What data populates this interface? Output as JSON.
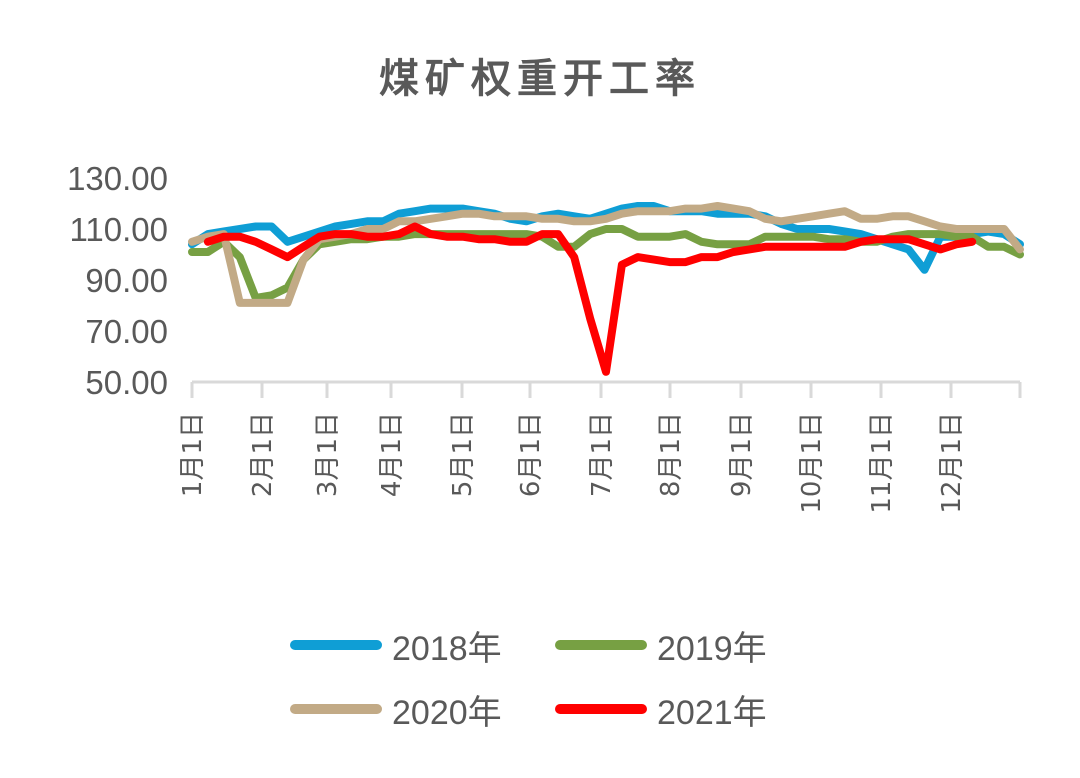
{
  "chart_data": {
    "type": "line",
    "title": "煤矿权重开工率",
    "xlabel": "",
    "ylabel": "",
    "ylim": [
      50,
      130
    ],
    "yticks": [
      "130.00",
      "110.00",
      "90.00",
      "70.00",
      "50.00"
    ],
    "xticks": [
      "1月1日",
      "2月1日",
      "3月1日",
      "4月1日",
      "5月1日",
      "6月1日",
      "7月1日",
      "8月1日",
      "9月1日",
      "10月1日",
      "11月1日",
      "12月1日"
    ],
    "grid": false,
    "legend_position": "bottom",
    "x_unit": "week of year (0-52)",
    "series": [
      {
        "name": "2018年",
        "color": "#0F9ED5",
        "x": [
          0,
          1,
          2,
          3,
          4,
          5,
          6,
          7,
          8,
          9,
          10,
          11,
          12,
          13,
          14,
          15,
          16,
          17,
          18,
          19,
          20,
          21,
          22,
          23,
          24,
          25,
          26,
          27,
          28,
          29,
          30,
          31,
          32,
          33,
          34,
          35,
          36,
          37,
          38,
          39,
          40,
          41,
          42,
          43,
          44,
          45,
          46,
          47,
          48,
          49,
          50,
          51,
          52
        ],
        "values": [
          104,
          108,
          109,
          110,
          111,
          111,
          105,
          107,
          109,
          111,
          112,
          113,
          113,
          116,
          117,
          118,
          118,
          118,
          117,
          116,
          114,
          113,
          115,
          116,
          115,
          114,
          116,
          118,
          119,
          119,
          117,
          117,
          117,
          116,
          116,
          116,
          115,
          112,
          110,
          110,
          110,
          109,
          108,
          106,
          104,
          102,
          94,
          107,
          107,
          108,
          109,
          108,
          104
        ]
      },
      {
        "name": "2019年",
        "color": "#77A043",
        "x": [
          0,
          1,
          2,
          3,
          4,
          5,
          6,
          7,
          8,
          9,
          10,
          11,
          12,
          13,
          14,
          15,
          16,
          17,
          18,
          19,
          20,
          21,
          22,
          23,
          24,
          25,
          26,
          27,
          28,
          29,
          30,
          31,
          32,
          33,
          34,
          35,
          36,
          37,
          38,
          39,
          40,
          41,
          42,
          43,
          44,
          45,
          46,
          47,
          48,
          49,
          50,
          51,
          52
        ],
        "values": [
          101,
          101,
          105,
          99,
          83,
          84,
          87,
          98,
          104,
          105,
          106,
          106,
          107,
          107,
          108,
          108,
          108,
          108,
          108,
          108,
          108,
          108,
          107,
          103,
          103,
          108,
          110,
          110,
          107,
          107,
          107,
          108,
          105,
          104,
          104,
          104,
          107,
          107,
          107,
          107,
          106,
          106,
          105,
          105,
          107,
          108,
          108,
          108,
          107,
          107,
          103,
          103,
          100
        ]
      },
      {
        "name": "2020年",
        "color": "#C2AA86",
        "x": [
          0,
          1,
          2,
          3,
          4,
          5,
          6,
          7,
          8,
          9,
          10,
          11,
          12,
          13,
          14,
          15,
          16,
          17,
          18,
          19,
          20,
          21,
          22,
          23,
          24,
          25,
          26,
          27,
          28,
          29,
          30,
          31,
          32,
          33,
          34,
          35,
          36,
          37,
          38,
          39,
          40,
          41,
          42,
          43,
          44,
          45,
          46,
          47,
          48,
          49,
          50,
          51,
          52
        ],
        "values": [
          105,
          107,
          108,
          81,
          81,
          81,
          81,
          98,
          106,
          107,
          108,
          110,
          110,
          113,
          113,
          114,
          115,
          116,
          116,
          115,
          115,
          115,
          114,
          114,
          113,
          113,
          114,
          116,
          117,
          117,
          117,
          118,
          118,
          119,
          118,
          117,
          114,
          113,
          114,
          115,
          116,
          117,
          114,
          114,
          115,
          115,
          113,
          111,
          110,
          110,
          110,
          110,
          102
        ]
      },
      {
        "name": "2021年",
        "color": "#FF0000",
        "x": [
          1,
          2,
          3,
          4,
          5,
          6,
          7,
          8,
          9,
          10,
          11,
          12,
          13,
          14,
          15,
          16,
          17,
          18,
          19,
          20,
          21,
          22,
          23,
          24,
          25,
          26,
          27,
          28,
          29,
          30,
          31,
          32,
          33,
          34,
          35,
          36,
          37,
          38,
          39,
          40,
          41,
          42,
          43,
          44,
          45,
          46,
          47,
          48,
          49
        ],
        "values": [
          105,
          107,
          107,
          105,
          102,
          99,
          103,
          107,
          108,
          108,
          107,
          107,
          108,
          111,
          108,
          107,
          107,
          106,
          106,
          105,
          105,
          108,
          108,
          99,
          75,
          54,
          96,
          99,
          98,
          97,
          97,
          99,
          99,
          101,
          102,
          103,
          103,
          103,
          103,
          103,
          103,
          105,
          106,
          106,
          106,
          104,
          102,
          104,
          105
        ]
      }
    ]
  },
  "legend": {
    "items": [
      {
        "label": "2018年",
        "color": "#0F9ED5"
      },
      {
        "label": "2019年",
        "color": "#77A043"
      },
      {
        "label": "2020年",
        "color": "#C2AA86"
      },
      {
        "label": "2021年",
        "color": "#FF0000"
      }
    ]
  }
}
